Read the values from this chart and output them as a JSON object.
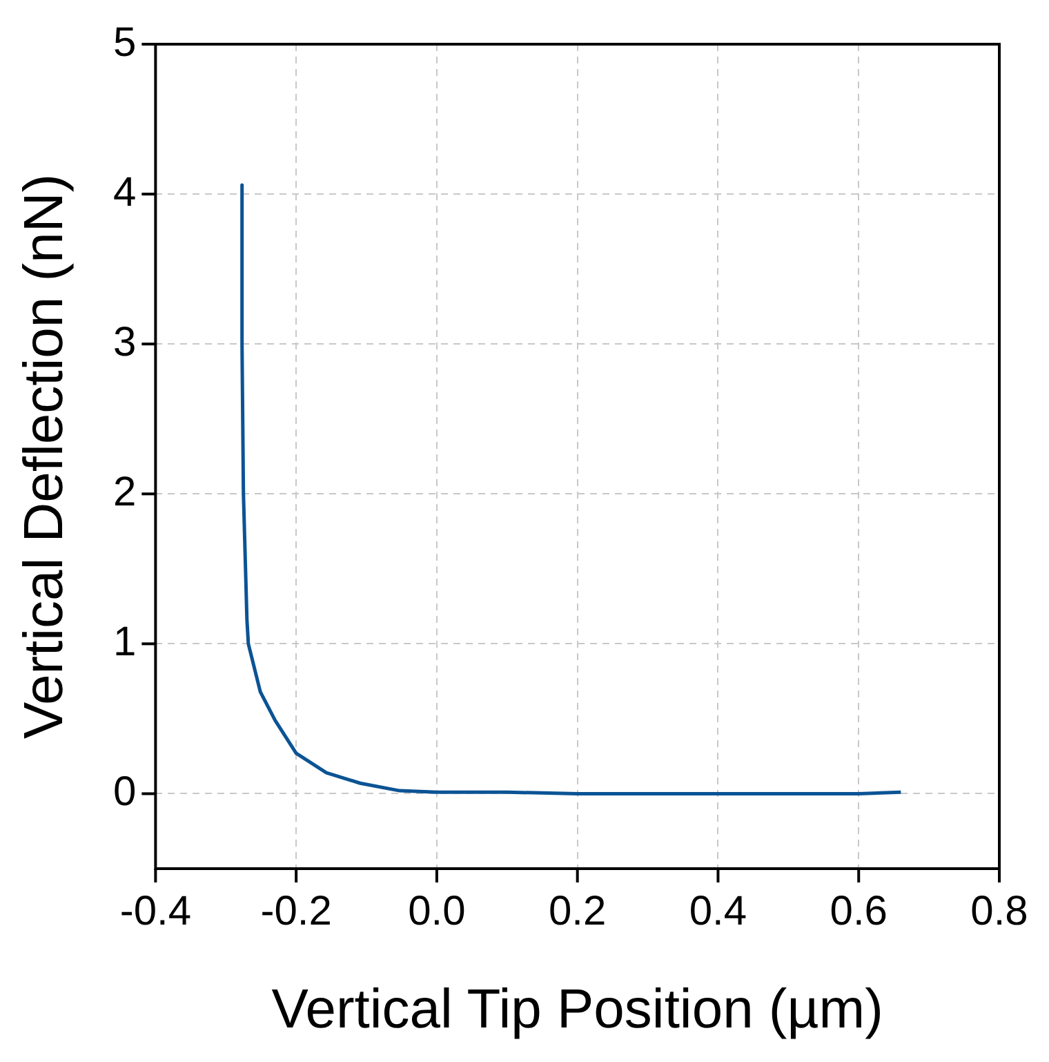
{
  "chart_data": {
    "type": "line",
    "xlabel": "Vertical Tip Position (µm)",
    "ylabel": "Vertical Deflection (nN)",
    "x": [
      -0.277,
      -0.277,
      -0.275,
      -0.27,
      -0.268,
      -0.251,
      -0.23,
      -0.2,
      -0.157,
      -0.109,
      -0.053,
      0.0,
      0.1,
      0.2,
      0.3,
      0.4,
      0.5,
      0.6,
      0.66
    ],
    "series": [
      {
        "color": "#0b5394",
        "values": [
          4.06,
          3.0,
          2.0,
          1.16,
          1.0,
          0.68,
          0.49,
          0.27,
          0.14,
          0.07,
          0.02,
          0.01,
          0.01,
          0.0,
          0.0,
          0.0,
          0.0,
          0.0,
          0.01
        ]
      }
    ],
    "xlim": [
      -0.4,
      0.8
    ],
    "xticks": [
      {
        "value": -0.4,
        "label": "-0.4"
      },
      {
        "value": -0.2,
        "label": "-0.2"
      },
      {
        "value": 0,
        "label": "0.0"
      },
      {
        "value": 0.2,
        "label": "0.2"
      },
      {
        "value": 0.4,
        "label": "0.4"
      },
      {
        "value": 0.6,
        "label": "0.6"
      },
      {
        "value": 0.8,
        "label": "0.8"
      }
    ],
    "ylim": [
      -0.5,
      5
    ],
    "yticks": [
      0,
      1,
      2,
      3,
      4,
      5
    ],
    "grid": true,
    "legend": false,
    "marker": "none",
    "line_style": "solid"
  }
}
